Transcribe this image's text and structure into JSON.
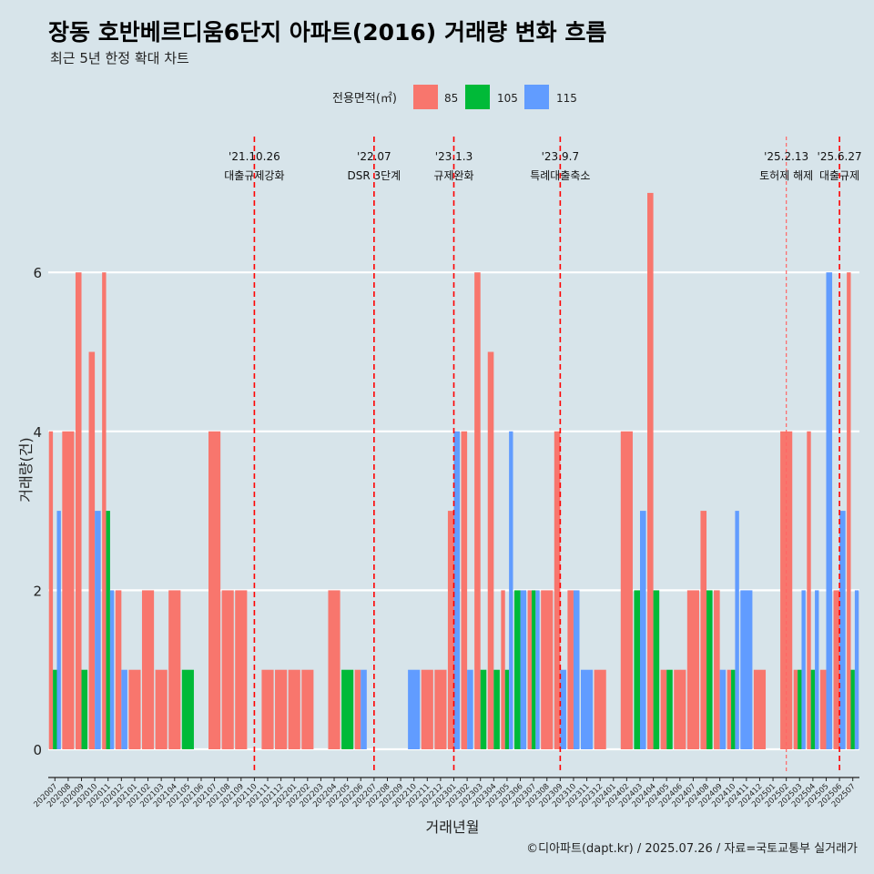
{
  "title": "장동 호반베르디움6단지 아파트(2016) 거래량 변화 흐름",
  "subtitle": "최근 5년 한정 확대 차트",
  "caption": "©디아파트(dapt.kr) / 2025.07.26 / 자료=국토교통부 실거래가",
  "legend": {
    "title": "전용면적(㎡)",
    "items": [
      {
        "label": "85",
        "color": "#f8766d"
      },
      {
        "label": "105",
        "color": "#00ba38"
      },
      {
        "label": "115",
        "color": "#619cff"
      }
    ]
  },
  "events": [
    {
      "x": "202110",
      "date": "'21.10.26",
      "label": "대출규제강화",
      "style": "dashed"
    },
    {
      "x": "202207",
      "date": "'22.07",
      "label": "DSR 3단계",
      "style": "dashed"
    },
    {
      "x": "202301",
      "date": "'23.1.3",
      "label": "규제완화",
      "style": "dashed"
    },
    {
      "x": "202309",
      "date": "'23.9.7",
      "label": "특례대출축소",
      "style": "dashed"
    },
    {
      "x": "202502",
      "date": "'25.2.13",
      "label": "토허제 해제",
      "style": "dotted"
    },
    {
      "x": "202506",
      "date": "'25.6.27",
      "label": "대출규제",
      "style": "dashed"
    }
  ],
  "chart_data": {
    "type": "bar",
    "xlabel": "거래년월",
    "ylabel": "거래량(건)",
    "ylim": [
      0,
      7
    ],
    "yticks": [
      0,
      2,
      4,
      6
    ],
    "grid": true,
    "legend_position": "top",
    "categories": [
      "202007",
      "202008",
      "202009",
      "202010",
      "202011",
      "202012",
      "202101",
      "202102",
      "202103",
      "202104",
      "202105",
      "202106",
      "202107",
      "202108",
      "202109",
      "202110",
      "202111",
      "202112",
      "202201",
      "202202",
      "202203",
      "202204",
      "202205",
      "202206",
      "202207",
      "202208",
      "202209",
      "202210",
      "202211",
      "202212",
      "202301",
      "202302",
      "202303",
      "202304",
      "202305",
      "202306",
      "202307",
      "202308",
      "202309",
      "202310",
      "202311",
      "202312",
      "202401",
      "202402",
      "202403",
      "202404",
      "202405",
      "202406",
      "202407",
      "202408",
      "202409",
      "202410",
      "202411",
      "202412",
      "202501",
      "202502",
      "202503",
      "202504",
      "202505",
      "202506",
      "202507"
    ],
    "series": [
      {
        "name": "85",
        "color": "#f8766d",
        "values": [
          4,
          4,
          6,
          5,
          6,
          2,
          1,
          2,
          1,
          2,
          0,
          0,
          4,
          2,
          2,
          0,
          1,
          1,
          1,
          1,
          0,
          2,
          0,
          1,
          0,
          0,
          0,
          0,
          1,
          1,
          3,
          4,
          6,
          5,
          2,
          0,
          2,
          2,
          4,
          2,
          0,
          1,
          0,
          4,
          0,
          7,
          1,
          1,
          2,
          3,
          2,
          1,
          0,
          1,
          0,
          4,
          1,
          4,
          1,
          2,
          6
        ]
      },
      {
        "name": "105",
        "color": "#00ba38",
        "values": [
          1,
          0,
          1,
          0,
          3,
          0,
          0,
          0,
          0,
          0,
          1,
          0,
          0,
          0,
          0,
          0,
          0,
          0,
          0,
          0,
          0,
          0,
          1,
          0,
          0,
          0,
          0,
          0,
          0,
          0,
          0,
          0,
          1,
          1,
          1,
          2,
          2,
          0,
          0,
          0,
          0,
          0,
          0,
          0,
          2,
          2,
          1,
          0,
          0,
          2,
          0,
          1,
          0,
          0,
          0,
          0,
          1,
          1,
          0,
          0,
          1
        ]
      },
      {
        "name": "115",
        "color": "#619cff",
        "values": [
          3,
          0,
          0,
          3,
          2,
          1,
          0,
          0,
          0,
          0,
          0,
          0,
          0,
          0,
          0,
          0,
          0,
          0,
          0,
          0,
          0,
          0,
          0,
          1,
          0,
          0,
          0,
          1,
          0,
          0,
          4,
          1,
          0,
          0,
          4,
          2,
          2,
          0,
          1,
          2,
          1,
          0,
          0,
          0,
          3,
          0,
          0,
          0,
          0,
          0,
          1,
          3,
          2,
          0,
          0,
          0,
          2,
          2,
          6,
          3,
          2
        ]
      }
    ]
  }
}
